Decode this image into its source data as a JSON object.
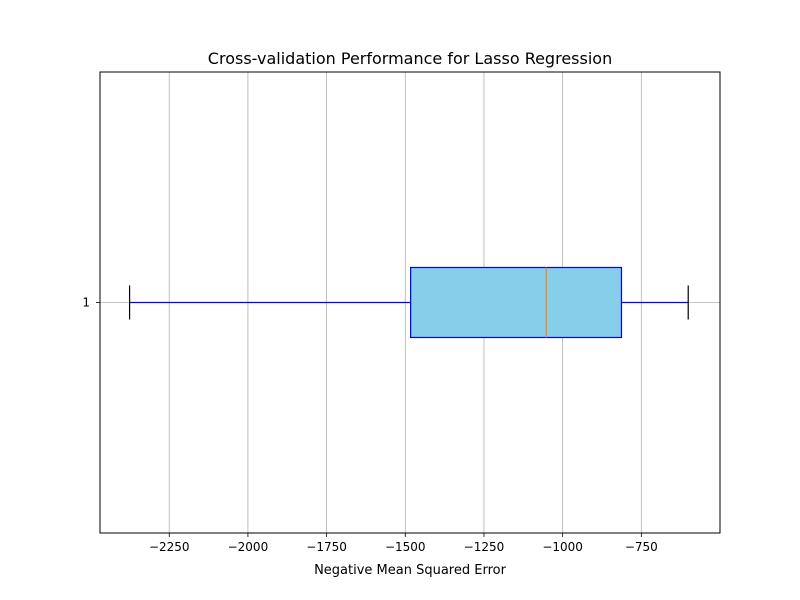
{
  "chart_data": {
    "type": "boxplot",
    "orientation": "horizontal",
    "title": "Cross-validation Performance for Lasso Regression",
    "xlabel": "Negative Mean Squared Error",
    "ylabel": "",
    "xlim": [
      -2470,
      -500
    ],
    "x_ticks": [
      -2250,
      -2000,
      -1750,
      -1500,
      -1250,
      -1000,
      -750
    ],
    "x_tick_labels": [
      "−2250",
      "−2000",
      "−1750",
      "−1500",
      "−1250",
      "−1000",
      "−750"
    ],
    "y_tick_labels": [
      "1"
    ],
    "grid": true,
    "series": [
      {
        "position": 1,
        "whisker_low": -2376,
        "q1": -1483,
        "median": -1052,
        "q3": -813,
        "whisker_high": -601
      }
    ],
    "colors": {
      "box_fill": "#87ceeb",
      "box_edge": "#0000ff",
      "whisker": "#0000ff",
      "cap": "#000000",
      "median": "#ff7f0e",
      "grid": "#b0b0b0"
    }
  }
}
